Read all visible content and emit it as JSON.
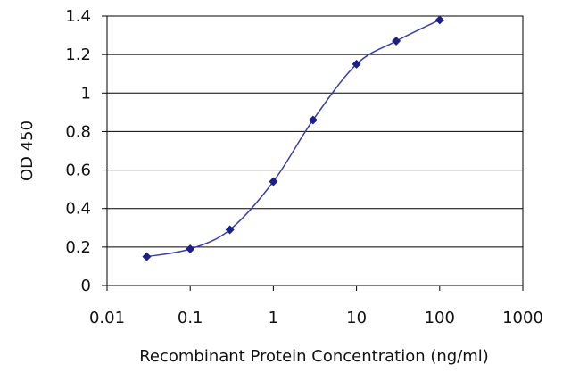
{
  "chart_data": {
    "type": "line",
    "title": "",
    "xlabel": "Recombinant Protein Concentration (ng/ml)",
    "ylabel": "OD 450",
    "xscale": "log",
    "xlim": [
      0.01,
      1000
    ],
    "ylim": [
      0,
      1.4
    ],
    "xticks": [
      "0.01",
      "0.1",
      "1",
      "10",
      "100",
      "1000"
    ],
    "yticks": [
      "0",
      "0.2",
      "0.4",
      "0.6",
      "0.8",
      "1",
      "1.2",
      "1.4"
    ],
    "grid": "horizontal",
    "legend": "none",
    "series": [
      {
        "color": "#3a3fa8",
        "x": [
          0.03,
          0.1,
          0.3,
          1,
          3,
          10,
          30,
          100
        ],
        "y": [
          0.15,
          0.19,
          0.29,
          0.54,
          0.86,
          1.15,
          1.27,
          1.38
        ]
      }
    ]
  }
}
